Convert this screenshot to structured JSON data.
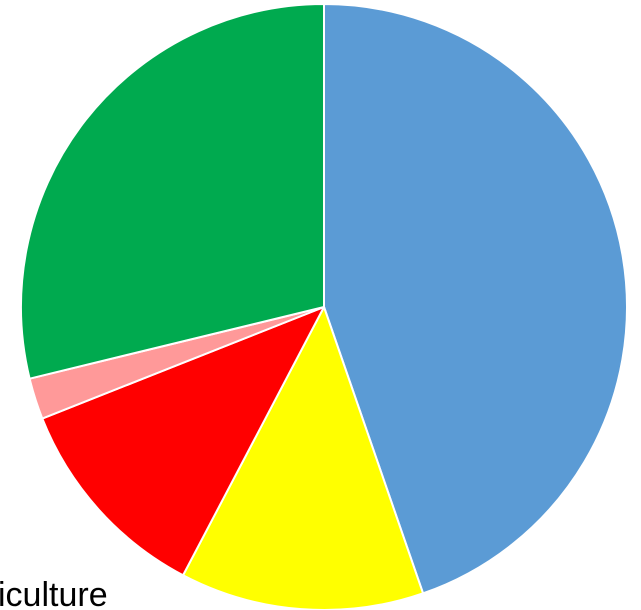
{
  "chart_data": {
    "type": "pie",
    "start_angle_deg": 0,
    "direction": "clockwise",
    "slices": [
      {
        "value": 44.7,
        "color": "#5B9BD5"
      },
      {
        "value": 13.0,
        "color": "#FFFF00"
      },
      {
        "value": 11.3,
        "color": "#FF0000"
      },
      {
        "value": 2.2,
        "color": "#FF9999"
      },
      {
        "value": 28.8,
        "color": "#00AA4F"
      }
    ],
    "visible_text": {
      "top_partial": "",
      "bottom_partial": "iculture"
    }
  }
}
